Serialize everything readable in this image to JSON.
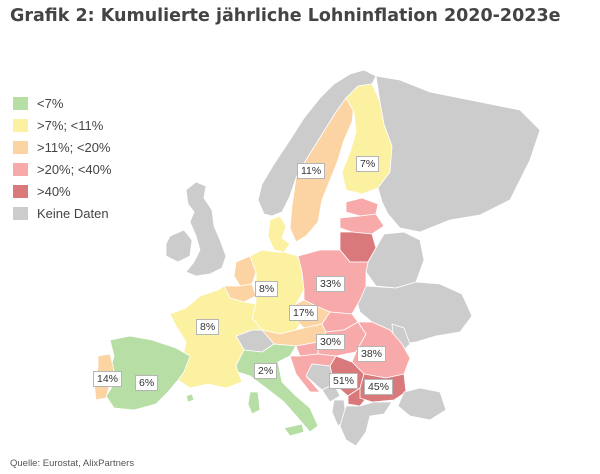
{
  "title": "Grafik 2: Kumulierte jährliche Lohninflation 2020-2023e",
  "legend": [
    {
      "label": "<7%",
      "color": "#b7dfa5"
    },
    {
      "label": ">7%; <11%",
      "color": "#fbf1a0"
    },
    {
      "label": ">11%; <20%",
      "color": "#fcd3a2"
    },
    {
      "label": ">20%; <40%",
      "color": "#f8aaaa"
    },
    {
      "label": ">40%",
      "color": "#d9797b"
    },
    {
      "label": "Keine Daten",
      "color": "#cccccc"
    }
  ],
  "value_labels": {
    "sweden": "11%",
    "finland": "7%",
    "germany": "8%",
    "poland": "33%",
    "france": "8%",
    "czechia": "17%",
    "hungary": "30%",
    "romania": "38%",
    "portugal": "14%",
    "spain": "6%",
    "italy": "2%",
    "serbia": "51%",
    "bulgaria": "45%"
  },
  "source": "Quelle: Eurostat, AlixPartners"
}
